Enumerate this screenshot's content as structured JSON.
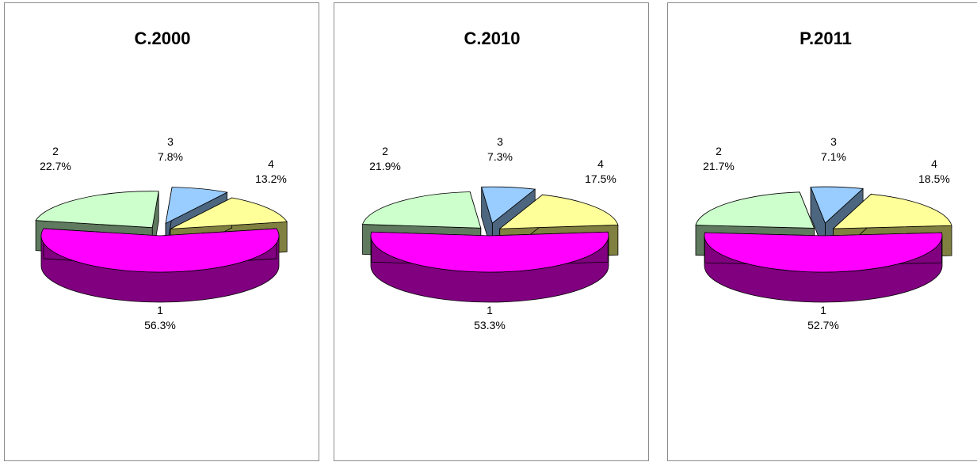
{
  "colors": {
    "slice_1": "#ff00ff",
    "slice_1_side": "#800080",
    "slice_2": "#ccffcc",
    "slice_2_side": "#5f7a5f",
    "slice_3": "#99ccff",
    "slice_3_side": "#4d6680",
    "slice_4": "#ffff99",
    "slice_4_side": "#808040"
  },
  "chart_data": [
    {
      "type": "pie",
      "title": "C.2000",
      "categories": [
        "1",
        "2",
        "3",
        "4"
      ],
      "values": [
        56.3,
        22.7,
        7.8,
        13.2
      ],
      "labels": [
        "56.3%",
        "22.7%",
        "7.8%",
        "13.2%"
      ],
      "style": "3d-exploded"
    },
    {
      "type": "pie",
      "title": "C.2010",
      "categories": [
        "1",
        "2",
        "3",
        "4"
      ],
      "values": [
        53.3,
        21.9,
        7.3,
        17.5
      ],
      "labels": [
        "53.3%",
        "21.9%",
        "7.3%",
        "17.5%"
      ],
      "style": "3d-exploded"
    },
    {
      "type": "pie",
      "title": "P.2011",
      "categories": [
        "1",
        "2",
        "3",
        "4"
      ],
      "values": [
        52.7,
        21.7,
        7.1,
        18.5
      ],
      "labels": [
        "52.7%",
        "21.7%",
        "7.1%",
        "18.5%"
      ],
      "style": "3d-exploded"
    }
  ]
}
